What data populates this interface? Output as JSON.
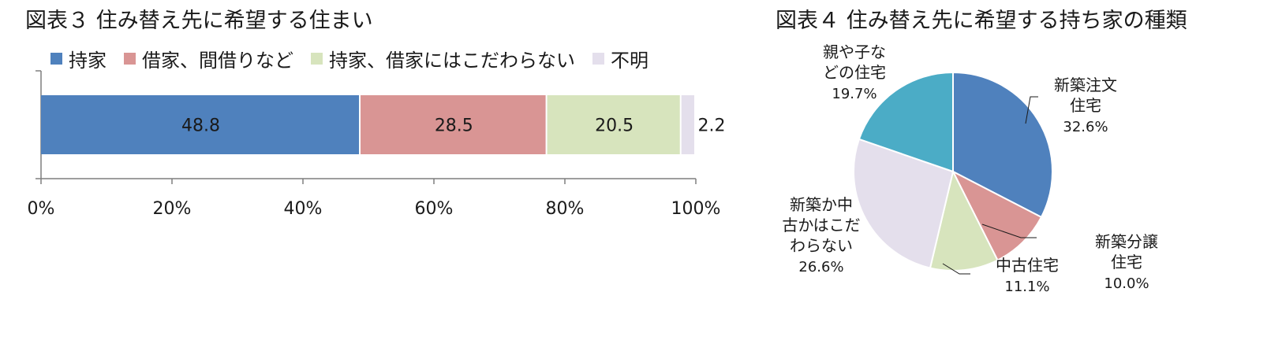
{
  "colors": {
    "blue": "#4f81bd",
    "pink": "#d99594",
    "lightgreen": "#d7e4bd",
    "lavender": "#e4dfec",
    "teal": "#4bacc6",
    "axis": "#7f7f7f"
  },
  "chart_data": [
    {
      "type": "bar",
      "orientation": "horizontal-stacked",
      "title": "図表３ 住み替え先に希望する住まい",
      "series": [
        {
          "name": "持家",
          "values": [
            48.8
          ],
          "label": "48.8",
          "color": "#4f81bd"
        },
        {
          "name": "借家、間借りなど",
          "values": [
            28.5
          ],
          "label": "28.5",
          "color": "#d99594"
        },
        {
          "name": "持家、借家にはこだわらない",
          "values": [
            20.5
          ],
          "label": "20.5",
          "color": "#d7e4bd"
        },
        {
          "name": "不明",
          "values": [
            2.2
          ],
          "label": "2.2",
          "color": "#e4dfec"
        }
      ],
      "xlim": [
        0,
        100
      ],
      "xticks": [
        "0%",
        "20%",
        "40%",
        "60%",
        "80%",
        "100%"
      ],
      "legend": "top",
      "grid": false
    },
    {
      "type": "pie",
      "title": "図表４ 住み替え先に希望する持ち家の種類",
      "slices": [
        {
          "label": [
            "新築注文",
            "住宅"
          ],
          "value": 32.6,
          "pct": "32.6%",
          "color": "#4f81bd"
        },
        {
          "label": [
            "新築分譲",
            "住宅"
          ],
          "value": 10.0,
          "pct": "10.0%",
          "color": "#d99594"
        },
        {
          "label": [
            "中古住宅"
          ],
          "value": 11.1,
          "pct": "11.1%",
          "color": "#d7e4bd"
        },
        {
          "label": [
            "新築か中",
            "古かはこだ",
            "わらない"
          ],
          "value": 26.6,
          "pct": "26.6%",
          "color": "#e4dfec"
        },
        {
          "label": [
            "親や子な",
            "どの住宅"
          ],
          "value": 19.7,
          "pct": "19.7%",
          "color": "#4bacc6"
        }
      ]
    }
  ]
}
